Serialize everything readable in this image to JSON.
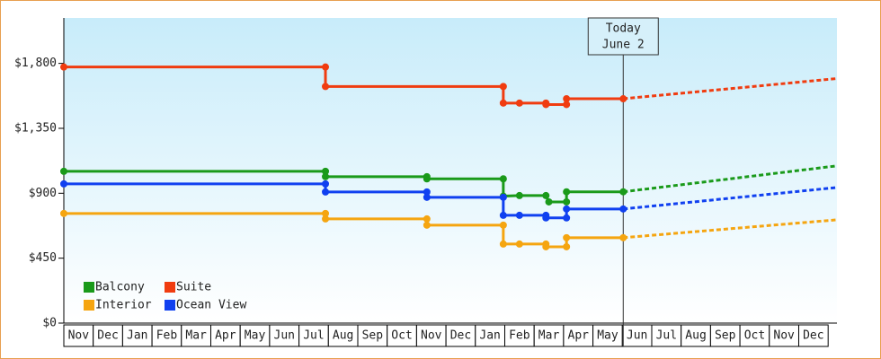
{
  "chart_data": {
    "type": "line",
    "ylim": [
      0,
      2115
    ],
    "yticks": [
      {
        "value": 0,
        "label": "$0"
      },
      {
        "value": 450,
        "label": "$450"
      },
      {
        "value": 900,
        "label": "$900"
      },
      {
        "value": 1350,
        "label": "$1,350"
      },
      {
        "value": 1800,
        "label": "$1,800"
      }
    ],
    "xlim": [
      0,
      26.3
    ],
    "xticks": [
      {
        "value": 0,
        "label": "Nov"
      },
      {
        "value": 1,
        "label": "Dec"
      },
      {
        "value": 2,
        "label": "Jan"
      },
      {
        "value": 3,
        "label": "Feb"
      },
      {
        "value": 4,
        "label": "Mar"
      },
      {
        "value": 5,
        "label": "Apr"
      },
      {
        "value": 6,
        "label": "May"
      },
      {
        "value": 7,
        "label": "Jun"
      },
      {
        "value": 8,
        "label": "Jul"
      },
      {
        "value": 9,
        "label": "Aug"
      },
      {
        "value": 10,
        "label": "Sep"
      },
      {
        "value": 11,
        "label": "Oct"
      },
      {
        "value": 12,
        "label": "Nov"
      },
      {
        "value": 13,
        "label": "Dec"
      },
      {
        "value": 14,
        "label": "Jan"
      },
      {
        "value": 15,
        "label": "Feb"
      },
      {
        "value": 16,
        "label": "Mar"
      },
      {
        "value": 17,
        "label": "Apr"
      },
      {
        "value": 18,
        "label": "May"
      },
      {
        "value": 19,
        "label": "Jun"
      },
      {
        "value": 20,
        "label": "Jul"
      },
      {
        "value": 21,
        "label": "Aug"
      },
      {
        "value": 22,
        "label": "Sep"
      },
      {
        "value": 23,
        "label": "Oct"
      },
      {
        "value": 24,
        "label": "Nov"
      },
      {
        "value": 25,
        "label": "Dec"
      }
    ],
    "today": {
      "x": 19.03,
      "lines": [
        "Today",
        "June 2"
      ]
    },
    "legend": "bottom-left",
    "series": [
      {
        "name": "Balcony",
        "color": "#1a9a1a",
        "x": [
          0,
          8.9,
          8.9,
          12.35,
          12.35,
          14.95,
          14.95,
          15.5,
          16.4,
          16.5,
          17.1,
          17.1,
          19.03
        ],
        "values": [
          1052,
          1052,
          1015,
          1015,
          1000,
          1000,
          880,
          884,
          884,
          840,
          840,
          910,
          910
        ],
        "forecast": {
          "x": [
            19.03,
            26.3
          ],
          "values": [
            910,
            1090
          ]
        }
      },
      {
        "name": "Suite",
        "color": "#f03c10",
        "x": [
          0,
          8.9,
          8.9,
          14.95,
          14.95,
          15.5,
          16.4,
          16.4,
          17.1,
          17.1,
          19.03
        ],
        "values": [
          1775,
          1775,
          1640,
          1640,
          1525,
          1525,
          1525,
          1515,
          1515,
          1555,
          1555
        ],
        "forecast": {
          "x": [
            19.03,
            26.3
          ],
          "values": [
            1555,
            1695
          ]
        }
      },
      {
        "name": "Interior",
        "color": "#f5a510",
        "x": [
          0,
          8.9,
          8.9,
          12.35,
          12.35,
          14.95,
          14.95,
          15.5,
          16.4,
          16.4,
          17.1,
          17.1,
          19.03
        ],
        "values": [
          760,
          760,
          722,
          722,
          679,
          679,
          548,
          548,
          548,
          529,
          529,
          592,
          592
        ],
        "forecast": {
          "x": [
            19.03,
            26.3
          ],
          "values": [
            592,
            716
          ]
        }
      },
      {
        "name": "Ocean View",
        "color": "#1040f0",
        "x": [
          0,
          8.9,
          8.9,
          12.35,
          12.35,
          14.95,
          14.95,
          15.5,
          16.4,
          16.4,
          17.1,
          17.1,
          19.03
        ],
        "values": [
          965,
          965,
          909,
          909,
          872,
          872,
          747,
          747,
          747,
          729,
          729,
          791,
          791
        ],
        "forecast": {
          "x": [
            19.03,
            26.3
          ],
          "values": [
            791,
            940
          ]
        }
      }
    ]
  }
}
